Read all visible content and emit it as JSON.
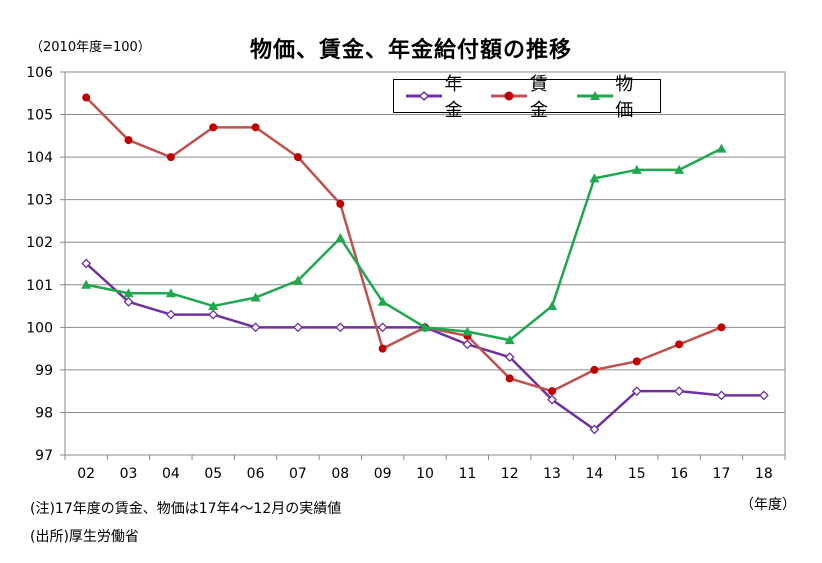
{
  "chart_data": {
    "type": "line",
    "title": "物価、賃金、年金給付額の推移",
    "unit_note": "（2010年度=100）",
    "x_unit": "（年度）",
    "categories": [
      "02",
      "03",
      "04",
      "05",
      "06",
      "07",
      "08",
      "09",
      "10",
      "11",
      "12",
      "13",
      "14",
      "15",
      "16",
      "17",
      "18"
    ],
    "ylim": [
      97,
      106
    ],
    "yticks": [
      97,
      98,
      99,
      100,
      101,
      102,
      103,
      104,
      105,
      106
    ],
    "grid": true,
    "legend_position": "top-right",
    "series": [
      {
        "name": "年金",
        "color": "#7030A0",
        "marker": "diamond-open",
        "values": [
          101.5,
          100.6,
          100.3,
          100.3,
          100.0,
          100.0,
          100.0,
          100.0,
          100.0,
          99.6,
          99.3,
          98.3,
          97.6,
          98.5,
          98.5,
          98.4,
          98.4
        ]
      },
      {
        "name": "賃金",
        "color": "#C0504D",
        "marker": "circle",
        "values": [
          105.4,
          104.4,
          104.0,
          104.7,
          104.7,
          104.0,
          102.9,
          99.5,
          100.0,
          99.8,
          98.8,
          98.5,
          99.0,
          99.2,
          99.6,
          100.0,
          null
        ]
      },
      {
        "name": "物価",
        "color": "#1FA84F",
        "marker": "triangle",
        "values": [
          101.0,
          100.8,
          100.8,
          100.5,
          100.7,
          101.1,
          102.1,
          100.6,
          100.0,
          99.9,
          99.7,
          100.5,
          103.5,
          103.7,
          103.7,
          104.2,
          null
        ]
      }
    ]
  },
  "notes": {
    "note1": "(注)17年度の賃金、物価は17年4～12月の実績値",
    "note2": "(出所)厚生労働省"
  }
}
